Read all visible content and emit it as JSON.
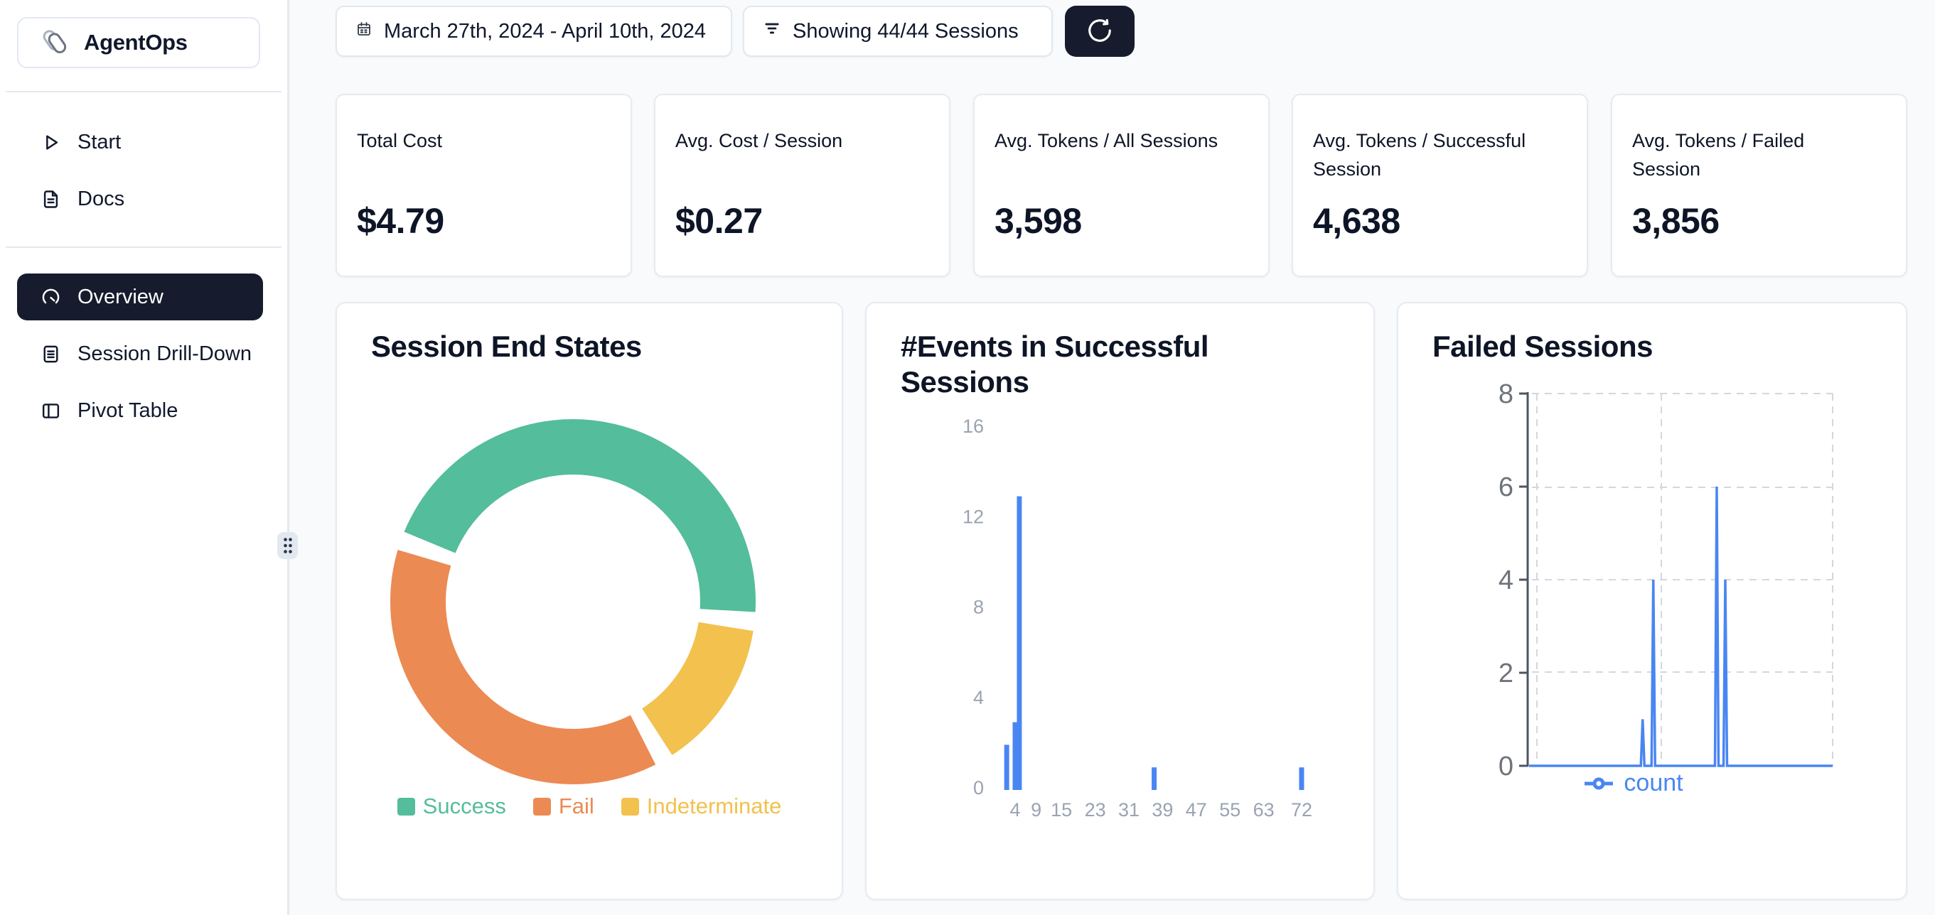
{
  "app": {
    "name": "AgentOps"
  },
  "colors": {
    "navy": "#161c2d",
    "page_bg": "#f8fafc",
    "border": "#e2e8f0",
    "text_dark": "#0d1526",
    "green": "#54bd9b",
    "orange": "#ec8a53",
    "yellow": "#f2c14e",
    "blue": "#4a86f2",
    "tick_gray": "#9aa3b2",
    "axis_label_gray": "#6e737b",
    "grid_dash": "#d3d7de",
    "axis_line": "#4b5563"
  },
  "sidebar": {
    "logo": "AgentOps",
    "groups": [
      {
        "items": [
          {
            "label": "Start",
            "icon": "play-icon",
            "active": false
          },
          {
            "label": "Docs",
            "icon": "document-icon",
            "active": false
          }
        ]
      },
      {
        "items": [
          {
            "label": "Overview",
            "icon": "gauge-icon",
            "active": true
          },
          {
            "label": "Session Drill-Down",
            "icon": "file-text-icon",
            "active": false
          },
          {
            "label": "Pivot Table",
            "icon": "panel-left-icon",
            "active": false
          }
        ]
      }
    ]
  },
  "topbar": {
    "date_range": "March 27th, 2024 - April 10th, 2024",
    "sessions_filter": "Showing 44/44 Sessions"
  },
  "stats": [
    {
      "label": "Total Cost",
      "value": "$4.79"
    },
    {
      "label": "Avg. Cost / Session",
      "value": "$0.27"
    },
    {
      "label": "Avg. Tokens / All Sessions",
      "value": "3,598"
    },
    {
      "label": "Avg. Tokens / Successful Session",
      "value": "4,638"
    },
    {
      "label": "Avg. Tokens / Failed Session",
      "value": "3,856"
    }
  ],
  "chart_data": [
    {
      "type": "pie",
      "title": "Session End States",
      "labels": [
        "Success",
        "Fail",
        "Indeterminate"
      ],
      "values_percent": [
        47,
        39,
        14
      ],
      "colors": [
        "#54bd9b",
        "#ec8a53",
        "#f2c14e"
      ],
      "donut": true,
      "legend_position": "bottom",
      "start_angle_deg": 292.5,
      "gap_deg": 6,
      "draw_order": [
        0,
        2,
        1
      ]
    },
    {
      "type": "bar",
      "title": "#Events in Successful Sessions",
      "x": [
        2,
        4,
        5,
        37,
        72
      ],
      "values": [
        2,
        3,
        13,
        1,
        1
      ],
      "xticks": [
        4,
        9,
        15,
        23,
        31,
        39,
        47,
        55,
        63,
        72
      ],
      "yticks": [
        0,
        4,
        8,
        12,
        16
      ],
      "ylim": [
        0,
        16
      ],
      "bar_color": "#4a86f2",
      "grid": false
    },
    {
      "type": "line",
      "title": "Failed Sessions",
      "series": [
        {
          "name": "count",
          "x_fraction": [
            0.377,
            0.412,
            0.62,
            0.648
          ],
          "values": [
            1,
            4,
            6,
            4
          ]
        }
      ],
      "yticks": [
        0,
        2,
        4,
        6,
        8
      ],
      "ylim": [
        0,
        8
      ],
      "color": "#4a86f2",
      "grid": "dashed",
      "legend": [
        "count"
      ],
      "legend_position": "bottom"
    }
  ]
}
